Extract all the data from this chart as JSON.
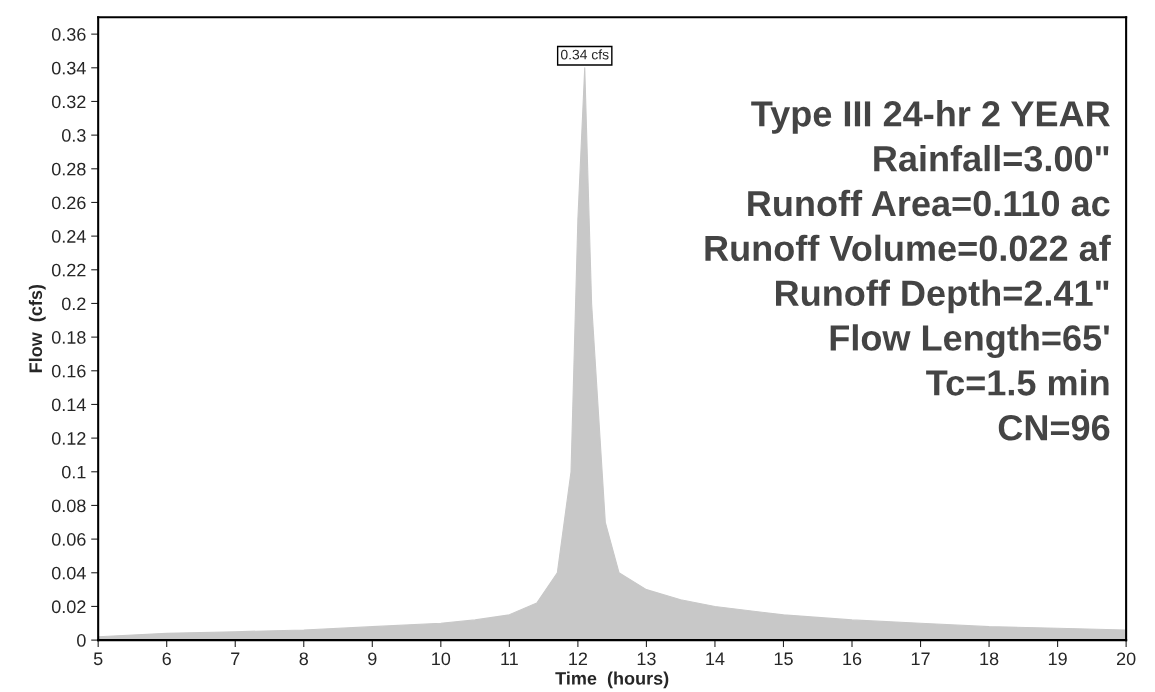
{
  "chart_data": {
    "type": "area",
    "xlabel": "Time  (hours)",
    "ylabel": "Flow  (cfs)",
    "x": [
      5,
      6,
      7,
      8,
      9,
      10,
      10.5,
      11,
      11.4,
      11.7,
      11.9,
      12.0,
      12.1,
      12.2,
      12.4,
      12.6,
      13,
      13.5,
      14,
      15,
      16,
      17,
      18,
      19,
      20
    ],
    "series": [
      {
        "color": "#c8c8c8",
        "values": [
          0.002,
          0.004,
          0.005,
          0.006,
          0.008,
          0.01,
          0.012,
          0.015,
          0.022,
          0.04,
          0.1,
          0.25,
          0.34,
          0.2,
          0.07,
          0.04,
          0.03,
          0.024,
          0.02,
          0.015,
          0.012,
          0.01,
          0.008,
          0.007,
          0.006
        ]
      }
    ],
    "xlim": [
      5,
      20
    ],
    "ylim": [
      0,
      0.37
    ],
    "xticks": [
      5,
      6,
      7,
      8,
      9,
      10,
      11,
      12,
      13,
      14,
      15,
      16,
      17,
      18,
      19,
      20
    ],
    "yticks": [
      0,
      0.02,
      0.04,
      0.06,
      0.08,
      0.1,
      0.12,
      0.14,
      0.16,
      0.18,
      0.2,
      0.22,
      0.24,
      0.26,
      0.28,
      0.3,
      0.32,
      0.34,
      0.36
    ],
    "grid": false,
    "annotations": [
      {
        "text": "0.34 cfs",
        "x": 12.1,
        "y": 0.34
      },
      "Type III 24-hr 2 YEAR",
      "Rainfall=3.00\"",
      "Runoff Area=0.110 ac",
      "Runoff Volume=0.022 af",
      "Runoff Depth=2.41\"",
      "Flow Length=65'",
      "Tc=1.5 min",
      "CN=96"
    ]
  }
}
